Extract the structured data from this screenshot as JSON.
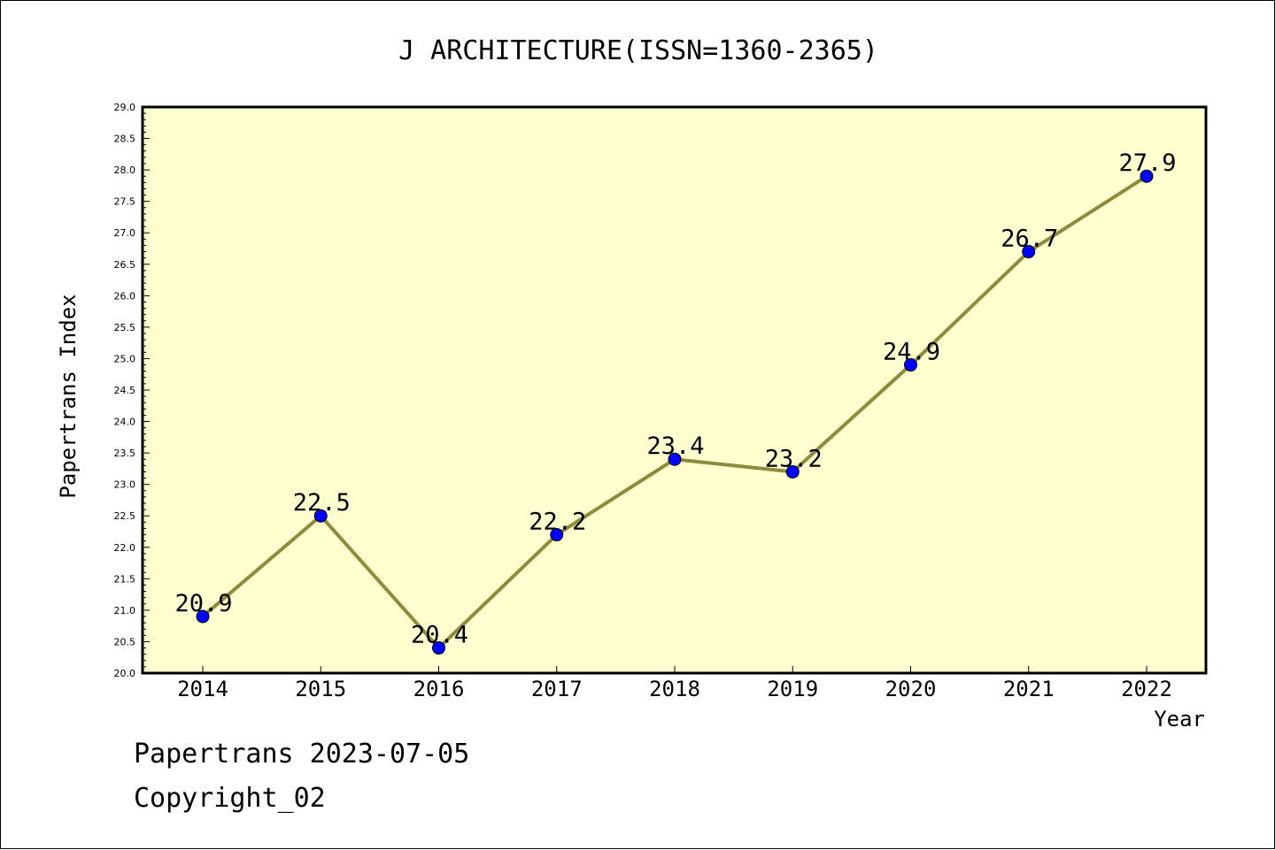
{
  "chart_data": {
    "type": "line",
    "title": "J ARCHITECTURE(ISSN=1360-2365)",
    "xlabel": "Year",
    "ylabel": "Papertrans Index",
    "categories": [
      "2014",
      "2015",
      "2016",
      "2017",
      "2018",
      "2019",
      "2020",
      "2021",
      "2022"
    ],
    "series": [
      {
        "values": [
          20.9,
          22.5,
          20.4,
          22.2,
          23.4,
          23.2,
          24.9,
          26.7,
          27.9
        ]
      }
    ],
    "data_labels": [
      "20.9",
      "22.5",
      "20.4",
      "22.2",
      "23.4",
      "23.2",
      "24.9",
      "26.7",
      "27.9"
    ],
    "ylim": [
      20.0,
      29.0
    ],
    "yticks": [
      "20.0",
      "20.5",
      "21.0",
      "21.5",
      "22.0",
      "22.5",
      "23.0",
      "23.5",
      "24.0",
      "24.5",
      "25.0",
      "25.5",
      "26.0",
      "26.5",
      "27.0",
      "27.5",
      "28.0",
      "28.5",
      "29.0"
    ],
    "grid": false,
    "colors": {
      "plot_background": "#ffffd0",
      "line": "#8f8a3c",
      "marker": "#0000ff"
    }
  },
  "footer": {
    "line1": "Papertrans 2023-07-05",
    "line2": "Copyright_02"
  }
}
